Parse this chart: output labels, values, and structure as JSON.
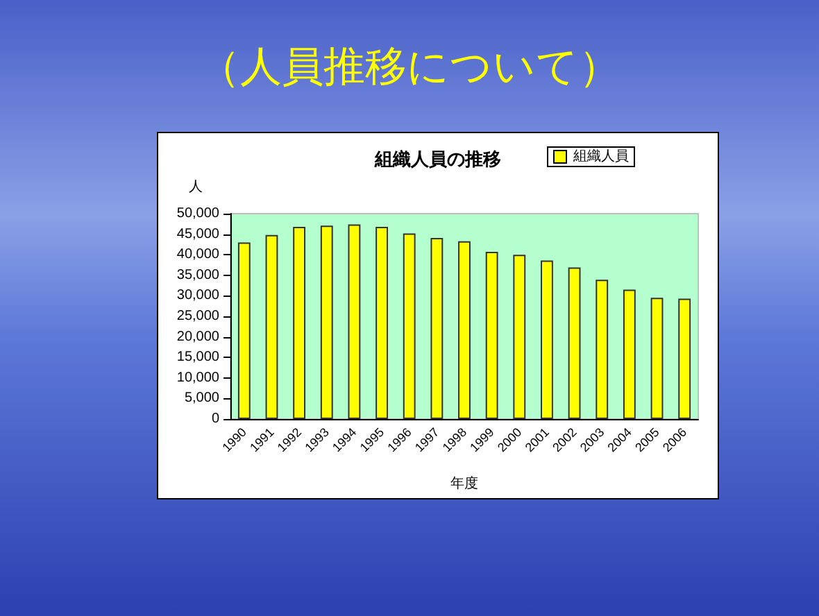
{
  "chart_data": {
    "type": "bar",
    "title": "組織人員の推移",
    "subtitle": "（人員推移について）",
    "xlabel": "年度",
    "ylabel": "人",
    "categories": [
      "1990",
      "1991",
      "1992",
      "1993",
      "1994",
      "1995",
      "1996",
      "1997",
      "1998",
      "1999",
      "2000",
      "2001",
      "2002",
      "2003",
      "2004",
      "2005",
      "2006"
    ],
    "series": [
      {
        "name": "組織人員",
        "color": "#ffff00",
        "values": [
          43000,
          44800,
          46800,
          47100,
          47400,
          46800,
          45200,
          44100,
          43300,
          40700,
          40000,
          38600,
          36900,
          33900,
          31500,
          29500,
          29300
        ]
      }
    ],
    "ylim": [
      0,
      50000
    ],
    "yticks": [
      0,
      {
        "value": 5000,
        "label": "5,000"
      },
      {
        "value": 10000,
        "label": "10,000"
      },
      {
        "value": 15000,
        "label": "15,000"
      },
      {
        "value": 20000,
        "label": "20,000"
      },
      {
        "value": 25000,
        "label": "25,000"
      },
      {
        "value": 30000,
        "label": "30,000"
      },
      {
        "value": 35000,
        "label": "35,000"
      },
      {
        "value": 40000,
        "label": "40,000"
      },
      {
        "value": 45000,
        "label": "45,000"
      },
      {
        "value": 50000,
        "label": "50,000"
      }
    ],
    "grid": false,
    "legend": "top right"
  }
}
